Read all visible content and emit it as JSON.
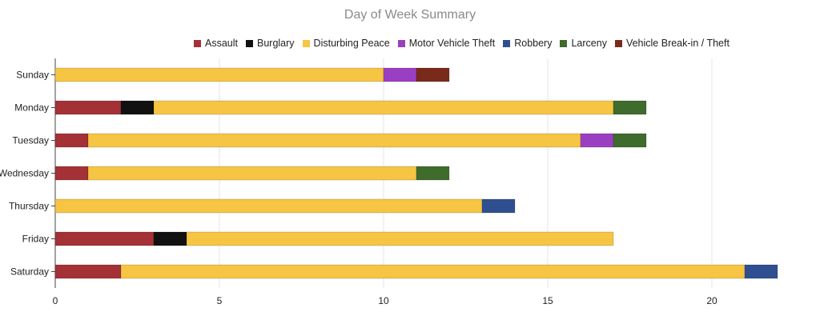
{
  "chart_data": {
    "type": "bar",
    "orientation": "horizontal",
    "stacked": true,
    "title": "Day of Week Summary",
    "xlabel": "",
    "ylabel": "",
    "xlim": [
      0,
      22
    ],
    "x_ticks": [
      0,
      5,
      10,
      15,
      20
    ],
    "grid": true,
    "legend_position": "top",
    "categories": [
      "Sunday",
      "Monday",
      "Tuesday",
      "Wednesday",
      "Thursday",
      "Friday",
      "Saturday"
    ],
    "series": [
      {
        "name": "Assault",
        "color": "#a33136",
        "values": [
          0,
          2,
          1,
          1,
          0,
          3,
          2
        ]
      },
      {
        "name": "Burglary",
        "color": "#111111",
        "values": [
          0,
          1,
          0,
          0,
          0,
          1,
          0
        ]
      },
      {
        "name": "Disturbing Peace",
        "color": "#f5c543",
        "values": [
          10,
          14,
          15,
          10,
          13,
          13,
          19
        ]
      },
      {
        "name": "Motor Vehicle Theft",
        "color": "#9b3fc2",
        "values": [
          1,
          0,
          1,
          0,
          0,
          0,
          0
        ]
      },
      {
        "name": "Robbery",
        "color": "#2f4f91",
        "values": [
          0,
          0,
          0,
          0,
          1,
          0,
          1
        ]
      },
      {
        "name": "Larceny",
        "color": "#3f6b2c",
        "values": [
          0,
          1,
          1,
          1,
          0,
          0,
          0
        ]
      },
      {
        "name": "Vehicle Break-in / Theft",
        "color": "#7a2a1a",
        "values": [
          1,
          0,
          0,
          0,
          0,
          0,
          0
        ]
      }
    ]
  }
}
